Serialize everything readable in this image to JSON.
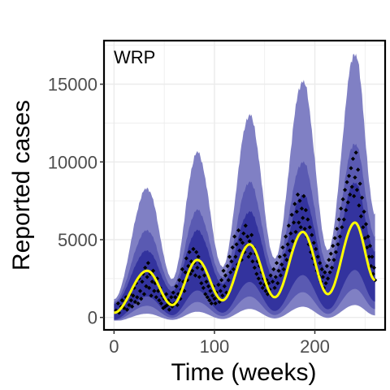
{
  "chart_data": {
    "type": "area",
    "panel_label": "WRP",
    "xlabel": "Time (weeks)",
    "ylabel": "Reported cases",
    "xlim": [
      -10,
      270
    ],
    "ylim": [
      -800,
      17800
    ],
    "x_ticks": [
      0,
      100,
      200
    ],
    "x_tick_labels": [
      "0",
      "100",
      "200"
    ],
    "y_ticks": [
      0,
      5000,
      10000,
      15000
    ],
    "y_tick_labels": [
      "0",
      "5000",
      "10000",
      "15000"
    ],
    "grid": true,
    "legend": "none",
    "colors": {
      "band_outer": "#8080c4",
      "band_middle": "#5a5ab2",
      "band_inner": "#33339e",
      "median_line": "#ffff00",
      "points": "#000000",
      "grid": "#ebebeb",
      "frame": "#000000"
    },
    "season_peaks": [
      {
        "x": 33,
        "median": 3000,
        "inner_hi": 4300,
        "middle_hi": 5600,
        "outer_hi": 8300,
        "lo": 450
      },
      {
        "x": 83,
        "median": 3700,
        "inner_hi": 5600,
        "middle_hi": 6900,
        "outer_hi": 10600,
        "lo": 700
      },
      {
        "x": 135,
        "median": 4700,
        "inner_hi": 6800,
        "middle_hi": 8700,
        "outer_hi": 13000,
        "lo": 800
      },
      {
        "x": 188,
        "median": 5500,
        "inner_hi": 7900,
        "middle_hi": 10000,
        "outer_hi": 15200,
        "lo": 1000
      },
      {
        "x": 240,
        "median": 6100,
        "inner_hi": 8700,
        "middle_hi": 11200,
        "outer_hi": 17000,
        "lo": 1200
      }
    ],
    "season_troughs": [
      {
        "x": 0,
        "median": 300
      },
      {
        "x": 58,
        "median": 800
      },
      {
        "x": 108,
        "median": 1100
      },
      {
        "x": 160,
        "median": 1300
      },
      {
        "x": 213,
        "median": 1500
      },
      {
        "x": 260,
        "median": 2400
      }
    ],
    "observed_points": [
      [
        2,
        450
      ],
      [
        4,
        900
      ],
      [
        5,
        300
      ],
      [
        7,
        700
      ],
      [
        8,
        1100
      ],
      [
        10,
        600
      ],
      [
        11,
        1000
      ],
      [
        12,
        1300
      ],
      [
        13,
        500
      ],
      [
        15,
        800
      ],
      [
        16,
        1500
      ],
      [
        17,
        1100
      ],
      [
        18,
        700
      ],
      [
        19,
        1400
      ],
      [
        20,
        1900
      ],
      [
        21,
        1000
      ],
      [
        22,
        2200
      ],
      [
        23,
        1300
      ],
      [
        24,
        900
      ],
      [
        25,
        2500
      ],
      [
        26,
        1700
      ],
      [
        27,
        1200
      ],
      [
        28,
        2300
      ],
      [
        29,
        2800
      ],
      [
        30,
        1500
      ],
      [
        31,
        3200
      ],
      [
        32,
        2000
      ],
      [
        33,
        2600
      ],
      [
        34,
        3500
      ],
      [
        35,
        1900
      ],
      [
        36,
        2800
      ],
      [
        37,
        1400
      ],
      [
        38,
        2300
      ],
      [
        39,
        3000
      ],
      [
        40,
        1700
      ],
      [
        41,
        2200
      ],
      [
        42,
        1300
      ],
      [
        43,
        2500
      ],
      [
        44,
        1700
      ],
      [
        45,
        1100
      ],
      [
        46,
        1900
      ],
      [
        47,
        900
      ],
      [
        48,
        1400
      ],
      [
        49,
        600
      ],
      [
        50,
        1200
      ],
      [
        51,
        700
      ],
      [
        52,
        1500
      ],
      [
        53,
        800
      ],
      [
        54,
        1100
      ],
      [
        55,
        500
      ],
      [
        56,
        900
      ],
      [
        57,
        1300
      ],
      [
        58,
        700
      ],
      [
        59,
        1600
      ],
      [
        60,
        900
      ],
      [
        61,
        1300
      ],
      [
        62,
        2000
      ],
      [
        63,
        800
      ],
      [
        64,
        1500
      ],
      [
        65,
        2400
      ],
      [
        66,
        1200
      ],
      [
        67,
        1800
      ],
      [
        68,
        3100
      ],
      [
        69,
        2300
      ],
      [
        70,
        1700
      ],
      [
        71,
        2900
      ],
      [
        72,
        3800
      ],
      [
        73,
        2400
      ],
      [
        74,
        3300
      ],
      [
        75,
        4200
      ],
      [
        76,
        2800
      ],
      [
        77,
        3600
      ],
      [
        78,
        3000
      ],
      [
        79,
        4400
      ],
      [
        80,
        3500
      ],
      [
        81,
        2700
      ],
      [
        82,
        4200
      ],
      [
        83,
        3200
      ],
      [
        84,
        3900
      ],
      [
        85,
        2600
      ],
      [
        86,
        3500
      ],
      [
        87,
        2200
      ],
      [
        88,
        3100
      ],
      [
        89,
        1900
      ],
      [
        90,
        2700
      ],
      [
        91,
        1500
      ],
      [
        92,
        2300
      ],
      [
        93,
        1300
      ],
      [
        94,
        2000
      ],
      [
        95,
        1100
      ],
      [
        96,
        1700
      ],
      [
        97,
        900
      ],
      [
        98,
        1400
      ],
      [
        99,
        2000
      ],
      [
        100,
        1200
      ],
      [
        101,
        900
      ],
      [
        102,
        1600
      ],
      [
        103,
        1300
      ],
      [
        104,
        2100
      ],
      [
        105,
        1000
      ],
      [
        106,
        1700
      ],
      [
        107,
        2400
      ],
      [
        108,
        1400
      ],
      [
        109,
        3000
      ],
      [
        110,
        2000
      ],
      [
        111,
        2700
      ],
      [
        112,
        1600
      ],
      [
        113,
        3300
      ],
      [
        114,
        2400
      ],
      [
        115,
        3900
      ],
      [
        116,
        2900
      ],
      [
        117,
        3600
      ],
      [
        118,
        4500
      ],
      [
        119,
        3100
      ],
      [
        120,
        5200
      ],
      [
        121,
        3900
      ],
      [
        122,
        4700
      ],
      [
        123,
        3400
      ],
      [
        124,
        5600
      ],
      [
        125,
        4300
      ],
      [
        126,
        5000
      ],
      [
        127,
        3700
      ],
      [
        128,
        4800
      ],
      [
        129,
        5400
      ],
      [
        130,
        4200
      ],
      [
        131,
        5900
      ],
      [
        132,
        4600
      ],
      [
        133,
        5200
      ],
      [
        134,
        3900
      ],
      [
        135,
        4900
      ],
      [
        136,
        4100
      ],
      [
        137,
        5300
      ],
      [
        138,
        3600
      ],
      [
        139,
        4500
      ],
      [
        140,
        3200
      ],
      [
        141,
        4100
      ],
      [
        142,
        2800
      ],
      [
        143,
        3600
      ],
      [
        144,
        2500
      ],
      [
        145,
        3300
      ],
      [
        146,
        2200
      ],
      [
        147,
        2900
      ],
      [
        148,
        1900
      ],
      [
        149,
        2500
      ],
      [
        150,
        2100
      ],
      [
        151,
        1700
      ],
      [
        152,
        2400
      ],
      [
        153,
        1500
      ],
      [
        154,
        2200
      ],
      [
        155,
        1800
      ],
      [
        156,
        2700
      ],
      [
        157,
        1400
      ],
      [
        158,
        2300
      ],
      [
        159,
        3100
      ],
      [
        160,
        1900
      ],
      [
        161,
        2600
      ],
      [
        162,
        3500
      ],
      [
        163,
        2200
      ],
      [
        164,
        3000
      ],
      [
        165,
        3900
      ],
      [
        166,
        2700
      ],
      [
        167,
        3400
      ],
      [
        168,
        4500
      ],
      [
        169,
        3100
      ],
      [
        170,
        4000
      ],
      [
        171,
        5200
      ],
      [
        172,
        3700
      ],
      [
        173,
        4700
      ],
      [
        174,
        5900
      ],
      [
        175,
        4300
      ],
      [
        176,
        5400
      ],
      [
        177,
        6600
      ],
      [
        178,
        4900
      ],
      [
        179,
        6100
      ],
      [
        180,
        7300
      ],
      [
        181,
        5500
      ],
      [
        182,
        6800
      ],
      [
        183,
        7900
      ],
      [
        184,
        6100
      ],
      [
        185,
        7500
      ],
      [
        186,
        5800
      ],
      [
        187,
        7000
      ],
      [
        188,
        6400
      ],
      [
        189,
        7800
      ],
      [
        190,
        5700
      ],
      [
        191,
        6900
      ],
      [
        192,
        5200
      ],
      [
        193,
        6300
      ],
      [
        194,
        4700
      ],
      [
        195,
        5800
      ],
      [
        196,
        4200
      ],
      [
        197,
        5300
      ],
      [
        198,
        3800
      ],
      [
        199,
        4800
      ],
      [
        200,
        3400
      ],
      [
        201,
        4400
      ],
      [
        202,
        3000
      ],
      [
        203,
        3900
      ],
      [
        204,
        2700
      ],
      [
        205,
        3500
      ],
      [
        206,
        2300
      ],
      [
        207,
        3100
      ],
      [
        208,
        2600
      ],
      [
        209,
        1900
      ],
      [
        210,
        2900
      ],
      [
        211,
        2200
      ],
      [
        212,
        3300
      ],
      [
        213,
        2500
      ],
      [
        214,
        3700
      ],
      [
        215,
        2900
      ],
      [
        216,
        4100
      ],
      [
        217,
        3200
      ],
      [
        218,
        4600
      ],
      [
        219,
        3700
      ],
      [
        220,
        5100
      ],
      [
        221,
        4200
      ],
      [
        222,
        5700
      ],
      [
        223,
        4700
      ],
      [
        224,
        6300
      ],
      [
        225,
        5200
      ],
      [
        226,
        7000
      ],
      [
        227,
        5800
      ],
      [
        228,
        7600
      ],
      [
        229,
        6300
      ],
      [
        230,
        8200
      ],
      [
        231,
        6900
      ],
      [
        232,
        8700
      ],
      [
        233,
        7400
      ],
      [
        234,
        9100
      ],
      [
        235,
        7900
      ],
      [
        236,
        9600
      ],
      [
        237,
        8400
      ],
      [
        238,
        10200
      ],
      [
        239,
        7800
      ],
      [
        240,
        9000
      ],
      [
        241,
        10600
      ],
      [
        242,
        8200
      ],
      [
        243,
        9500
      ],
      [
        244,
        7200
      ],
      [
        245,
        8600
      ],
      [
        246,
        6500
      ],
      [
        247,
        7700
      ],
      [
        248,
        5800
      ],
      [
        249,
        6800
      ],
      [
        250,
        5100
      ],
      [
        251,
        6000
      ],
      [
        252,
        4500
      ],
      [
        253,
        5200
      ],
      [
        254,
        3900
      ],
      [
        255,
        4600
      ],
      [
        256,
        3300
      ],
      [
        257,
        3900
      ],
      [
        258,
        2800
      ],
      [
        259,
        3200
      ],
      [
        260,
        2400
      ]
    ]
  }
}
